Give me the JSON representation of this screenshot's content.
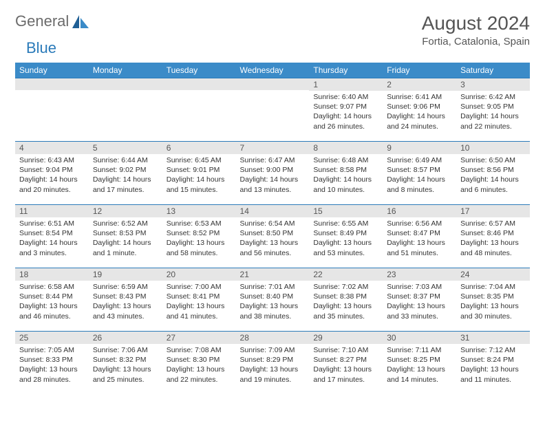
{
  "logo": {
    "textA": "General",
    "textB": "Blue"
  },
  "title": "August 2024",
  "location": "Fortia, Catalonia, Spain",
  "colors": {
    "header_bg": "#3b8bc8",
    "strip_bg": "#e6e6e6",
    "strip_border": "#2a7ab9",
    "text": "#333333",
    "logo_grey": "#6b6b6b",
    "logo_blue": "#2a7ab9"
  },
  "day_headers": [
    "Sunday",
    "Monday",
    "Tuesday",
    "Wednesday",
    "Thursday",
    "Friday",
    "Saturday"
  ],
  "weeks": [
    [
      null,
      null,
      null,
      null,
      {
        "n": "1",
        "sr": "6:40 AM",
        "ss": "9:07 PM",
        "dl": "14 hours and 26 minutes."
      },
      {
        "n": "2",
        "sr": "6:41 AM",
        "ss": "9:06 PM",
        "dl": "14 hours and 24 minutes."
      },
      {
        "n": "3",
        "sr": "6:42 AM",
        "ss": "9:05 PM",
        "dl": "14 hours and 22 minutes."
      }
    ],
    [
      {
        "n": "4",
        "sr": "6:43 AM",
        "ss": "9:04 PM",
        "dl": "14 hours and 20 minutes."
      },
      {
        "n": "5",
        "sr": "6:44 AM",
        "ss": "9:02 PM",
        "dl": "14 hours and 17 minutes."
      },
      {
        "n": "6",
        "sr": "6:45 AM",
        "ss": "9:01 PM",
        "dl": "14 hours and 15 minutes."
      },
      {
        "n": "7",
        "sr": "6:47 AM",
        "ss": "9:00 PM",
        "dl": "14 hours and 13 minutes."
      },
      {
        "n": "8",
        "sr": "6:48 AM",
        "ss": "8:58 PM",
        "dl": "14 hours and 10 minutes."
      },
      {
        "n": "9",
        "sr": "6:49 AM",
        "ss": "8:57 PM",
        "dl": "14 hours and 8 minutes."
      },
      {
        "n": "10",
        "sr": "6:50 AM",
        "ss": "8:56 PM",
        "dl": "14 hours and 6 minutes."
      }
    ],
    [
      {
        "n": "11",
        "sr": "6:51 AM",
        "ss": "8:54 PM",
        "dl": "14 hours and 3 minutes."
      },
      {
        "n": "12",
        "sr": "6:52 AM",
        "ss": "8:53 PM",
        "dl": "14 hours and 1 minute."
      },
      {
        "n": "13",
        "sr": "6:53 AM",
        "ss": "8:52 PM",
        "dl": "13 hours and 58 minutes."
      },
      {
        "n": "14",
        "sr": "6:54 AM",
        "ss": "8:50 PM",
        "dl": "13 hours and 56 minutes."
      },
      {
        "n": "15",
        "sr": "6:55 AM",
        "ss": "8:49 PM",
        "dl": "13 hours and 53 minutes."
      },
      {
        "n": "16",
        "sr": "6:56 AM",
        "ss": "8:47 PM",
        "dl": "13 hours and 51 minutes."
      },
      {
        "n": "17",
        "sr": "6:57 AM",
        "ss": "8:46 PM",
        "dl": "13 hours and 48 minutes."
      }
    ],
    [
      {
        "n": "18",
        "sr": "6:58 AM",
        "ss": "8:44 PM",
        "dl": "13 hours and 46 minutes."
      },
      {
        "n": "19",
        "sr": "6:59 AM",
        "ss": "8:43 PM",
        "dl": "13 hours and 43 minutes."
      },
      {
        "n": "20",
        "sr": "7:00 AM",
        "ss": "8:41 PM",
        "dl": "13 hours and 41 minutes."
      },
      {
        "n": "21",
        "sr": "7:01 AM",
        "ss": "8:40 PM",
        "dl": "13 hours and 38 minutes."
      },
      {
        "n": "22",
        "sr": "7:02 AM",
        "ss": "8:38 PM",
        "dl": "13 hours and 35 minutes."
      },
      {
        "n": "23",
        "sr": "7:03 AM",
        "ss": "8:37 PM",
        "dl": "13 hours and 33 minutes."
      },
      {
        "n": "24",
        "sr": "7:04 AM",
        "ss": "8:35 PM",
        "dl": "13 hours and 30 minutes."
      }
    ],
    [
      {
        "n": "25",
        "sr": "7:05 AM",
        "ss": "8:33 PM",
        "dl": "13 hours and 28 minutes."
      },
      {
        "n": "26",
        "sr": "7:06 AM",
        "ss": "8:32 PM",
        "dl": "13 hours and 25 minutes."
      },
      {
        "n": "27",
        "sr": "7:08 AM",
        "ss": "8:30 PM",
        "dl": "13 hours and 22 minutes."
      },
      {
        "n": "28",
        "sr": "7:09 AM",
        "ss": "8:29 PM",
        "dl": "13 hours and 19 minutes."
      },
      {
        "n": "29",
        "sr": "7:10 AM",
        "ss": "8:27 PM",
        "dl": "13 hours and 17 minutes."
      },
      {
        "n": "30",
        "sr": "7:11 AM",
        "ss": "8:25 PM",
        "dl": "13 hours and 14 minutes."
      },
      {
        "n": "31",
        "sr": "7:12 AM",
        "ss": "8:24 PM",
        "dl": "13 hours and 11 minutes."
      }
    ]
  ],
  "labels": {
    "sunrise": "Sunrise:",
    "sunset": "Sunset:",
    "daylight": "Daylight:"
  }
}
